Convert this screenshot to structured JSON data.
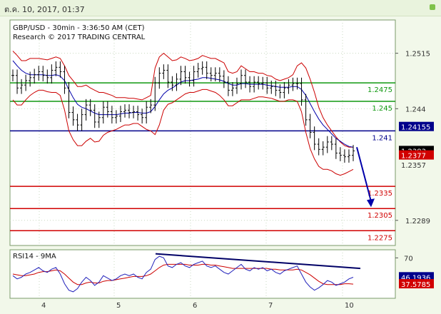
{
  "window": {
    "header_text": "ต.ค. 10, 2017, 01:37"
  },
  "colors": {
    "support": "#d10000",
    "resistance": "#119911",
    "pivot": "#00008b",
    "price": "#000000",
    "bollinger": "#cc0000",
    "ma": "#0000aa",
    "rsi": "#2222bb",
    "rsi_ma": "#cc0000",
    "trendline": "#000066"
  },
  "chart_data": [
    {
      "type": "line",
      "title": "GBP/USD - 30min - 3:36:50 AM (CET)",
      "subtitle": "Research © 2017 TRADING CENTRAL",
      "x_ticks": [
        "4",
        "5",
        "6",
        "7",
        "10"
      ],
      "y_ticks": [
        1.2515,
        1.244,
        1.2289
      ],
      "ylim": [
        1.2255,
        1.256
      ],
      "levels": [
        {
          "value": 1.2475,
          "label": "1.2475",
          "kind": "resistance"
        },
        {
          "value": 1.245,
          "label": "1.245",
          "kind": "resistance"
        },
        {
          "value": 1.241,
          "label": "1.241",
          "kind": "pivot"
        },
        {
          "value": 1.2335,
          "label": "1.2335",
          "kind": "support"
        },
        {
          "value": 1.2305,
          "label": "1.2305",
          "kind": "support"
        },
        {
          "value": 1.2275,
          "label": "1.2275",
          "kind": "support"
        }
      ],
      "price_badges": [
        {
          "value": 1.24155,
          "label": "1.24155",
          "color": "#00008b"
        },
        {
          "value": 1.2383,
          "label": "1.2383",
          "color": "#000000"
        },
        {
          "value": 1.2377,
          "label": "1.2377",
          "color": "#d10000"
        }
      ],
      "partial_labels": [
        {
          "label": "1.2357"
        }
      ],
      "price_series": [
        1.2485,
        1.2468,
        1.2472,
        1.2478,
        1.2482,
        1.2486,
        1.249,
        1.2485,
        1.2482,
        1.2492,
        1.2496,
        1.249,
        1.2468,
        1.2435,
        1.2425,
        1.2418,
        1.2432,
        1.2445,
        1.2438,
        1.2422,
        1.2428,
        1.2442,
        1.2436,
        1.2428,
        1.243,
        1.2436,
        1.2438,
        1.2435,
        1.2436,
        1.2432,
        1.2428,
        1.2442,
        1.2445,
        1.2475,
        1.2488,
        1.2492,
        1.2476,
        1.2472,
        1.248,
        1.249,
        1.2482,
        1.2478,
        1.249,
        1.2494,
        1.2496,
        1.2488,
        1.2485,
        1.2488,
        1.2484,
        1.2476,
        1.2465,
        1.2468,
        1.2474,
        1.2485,
        1.2476,
        1.247,
        1.2476,
        1.2474,
        1.2475,
        1.2468,
        1.247,
        1.2465,
        1.2462,
        1.2468,
        1.2472,
        1.2474,
        1.2474,
        1.2452,
        1.2425,
        1.2408,
        1.2392,
        1.2385,
        1.2388,
        1.2395,
        1.2392,
        1.238,
        1.2377,
        1.2375,
        1.2377,
        1.2383
      ],
      "bollinger_upper": [
        1.2518,
        1.2512,
        1.2505,
        1.2505,
        1.2508,
        1.2508,
        1.2508,
        1.2507,
        1.2506,
        1.2508,
        1.251,
        1.2508,
        1.2498,
        1.2485,
        1.2478,
        1.247,
        1.247,
        1.2472,
        1.2468,
        1.2465,
        1.2462,
        1.2462,
        1.246,
        1.2458,
        1.2455,
        1.2455,
        1.2455,
        1.2454,
        1.2454,
        1.2453,
        1.2452,
        1.2455,
        1.2458,
        1.2495,
        1.251,
        1.2515,
        1.251,
        1.2505,
        1.2506,
        1.251,
        1.2508,
        1.2505,
        1.2506,
        1.2508,
        1.2512,
        1.251,
        1.2508,
        1.2508,
        1.2505,
        1.2502,
        1.249,
        1.2488,
        1.249,
        1.2498,
        1.2494,
        1.249,
        1.249,
        1.2488,
        1.2488,
        1.2485,
        1.2484,
        1.248,
        1.2478,
        1.248,
        1.2482,
        1.2486,
        1.2498,
        1.2502,
        1.2495,
        1.248,
        1.2462,
        1.2442,
        1.2428,
        1.2418,
        1.241,
        1.2402,
        1.2395,
        1.239,
        1.2388,
        1.2388
      ],
      "bollinger_lower": [
        1.2452,
        1.2445,
        1.2445,
        1.2452,
        1.2458,
        1.2462,
        1.2465,
        1.2465,
        1.2463,
        1.2462,
        1.2462,
        1.2458,
        1.2438,
        1.241,
        1.2398,
        1.239,
        1.239,
        1.2396,
        1.24,
        1.2395,
        1.2396,
        1.2404,
        1.2408,
        1.241,
        1.2412,
        1.2415,
        1.2418,
        1.2418,
        1.242,
        1.242,
        1.2416,
        1.2412,
        1.241,
        1.2405,
        1.2418,
        1.2438,
        1.2446,
        1.2448,
        1.2452,
        1.2456,
        1.246,
        1.2462,
        1.2462,
        1.2464,
        1.2466,
        1.2466,
        1.2464,
        1.2462,
        1.2458,
        1.2452,
        1.2444,
        1.2444,
        1.2448,
        1.2452,
        1.2452,
        1.2452,
        1.2454,
        1.2456,
        1.2456,
        1.2455,
        1.2454,
        1.2452,
        1.245,
        1.245,
        1.2452,
        1.2452,
        1.245,
        1.2436,
        1.2408,
        1.2386,
        1.2372,
        1.2362,
        1.2358,
        1.2358,
        1.2356,
        1.2352,
        1.235,
        1.2352,
        1.2355,
        1.2358
      ],
      "moving_average": [
        1.2505,
        1.2498,
        1.2492,
        1.2488,
        1.2486,
        1.2486,
        1.2486,
        1.2486,
        1.2485,
        1.2485,
        1.2486,
        1.2484,
        1.2478,
        1.2466,
        1.2455,
        1.2446,
        1.2442,
        1.244,
        1.2437,
        1.2434,
        1.2432,
        1.2432,
        1.2432,
        1.2432,
        1.2432,
        1.2433,
        1.2434,
        1.2434,
        1.2435,
        1.2435,
        1.2434,
        1.2434,
        1.2436,
        1.2443,
        1.2452,
        1.246,
        1.2465,
        1.2468,
        1.2472,
        1.2476,
        1.2478,
        1.2478,
        1.2479,
        1.248,
        1.2482,
        1.2482,
        1.2481,
        1.248,
        1.2479,
        1.2477,
        1.2474,
        1.2472,
        1.2472,
        1.2474,
        1.2474,
        1.2473,
        1.2473,
        1.2473,
        1.2473,
        1.2472,
        1.2471,
        1.247,
        1.2469,
        1.2469,
        1.2469,
        1.247,
        1.247,
        1.2466,
        1.2458,
        1.2447,
        1.2436,
        1.2426,
        1.2418,
        1.2412,
        1.2406,
        1.24,
        1.2396,
        1.2392,
        1.2389,
        1.2388
      ]
    },
    {
      "type": "line",
      "title": "RSI14 - 9MA",
      "y_ticks": [
        70
      ],
      "ylim": [
        20,
        80
      ],
      "badges": [
        {
          "value": 46.1936,
          "label": "46.1936",
          "color": "#00008b"
        },
        {
          "value": 37.5785,
          "label": "37.5785",
          "color": "#d10000"
        }
      ],
      "rsi_series": [
        48,
        44,
        46,
        50,
        52,
        55,
        58,
        54,
        52,
        56,
        58,
        50,
        38,
        30,
        28,
        32,
        40,
        46,
        42,
        36,
        40,
        48,
        45,
        42,
        44,
        48,
        50,
        48,
        50,
        46,
        44,
        52,
        56,
        68,
        72,
        70,
        60,
        58,
        62,
        64,
        60,
        58,
        62,
        64,
        66,
        60,
        58,
        60,
        56,
        52,
        50,
        54,
        58,
        62,
        56,
        54,
        58,
        56,
        58,
        54,
        56,
        52,
        50,
        54,
        56,
        58,
        60,
        50,
        40,
        34,
        30,
        33,
        37,
        42,
        40,
        36,
        38,
        40,
        44,
        46
      ],
      "rsi_ma_series": [
        50,
        49,
        48,
        48,
        49,
        50,
        52,
        53,
        53,
        54,
        55,
        54,
        50,
        45,
        40,
        37,
        37,
        39,
        40,
        39,
        39,
        41,
        42,
        42,
        43,
        44,
        45,
        46,
        47,
        47,
        47,
        48,
        50,
        54,
        58,
        61,
        62,
        62,
        62,
        62,
        62,
        61,
        61,
        61,
        62,
        62,
        61,
        61,
        60,
        59,
        58,
        57,
        57,
        57,
        57,
        57,
        57,
        57,
        57,
        57,
        56,
        56,
        55,
        55,
        55,
        55,
        56,
        55,
        52,
        49,
        45,
        41,
        38,
        37,
        37,
        37,
        37,
        38,
        38,
        37.6
      ]
    }
  ]
}
